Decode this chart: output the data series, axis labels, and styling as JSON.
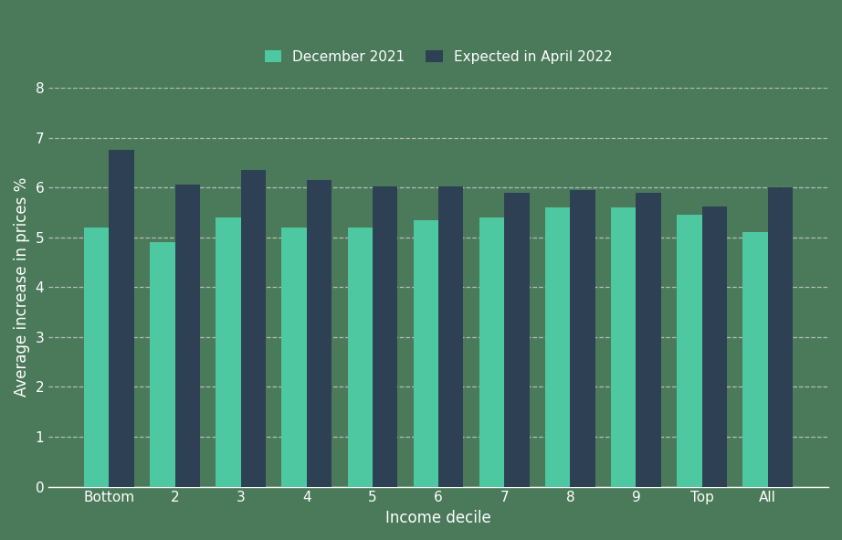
{
  "categories": [
    "Bottom",
    "2",
    "3",
    "4",
    "5",
    "6",
    "7",
    "8",
    "9",
    "Top",
    "All"
  ],
  "december_2021": [
    5.2,
    4.9,
    5.4,
    5.2,
    5.2,
    5.35,
    5.4,
    5.6,
    5.6,
    5.45,
    5.1
  ],
  "april_2022": [
    6.75,
    6.05,
    6.35,
    6.15,
    6.02,
    6.02,
    5.9,
    5.95,
    5.9,
    5.62,
    6.0
  ],
  "color_dec": "#4dc8a0",
  "color_apr": "#2e4154",
  "background_color": "#4a7a5a",
  "ylabel": "Average increase in prices %",
  "xlabel": "Income decile",
  "legend_dec": "December 2021",
  "legend_apr": "Expected in April 2022",
  "ylim": [
    0,
    8
  ],
  "yticks": [
    0,
    1,
    2,
    3,
    4,
    5,
    6,
    7,
    8
  ],
  "grid_color": "#c8c8c8",
  "bar_width": 0.38,
  "label_fontsize": 12,
  "tick_fontsize": 11,
  "legend_fontsize": 11
}
